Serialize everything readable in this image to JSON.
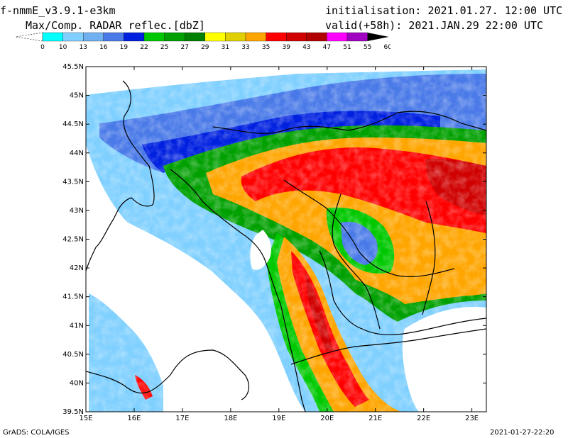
{
  "header": {
    "model": "f-nmmE_v3.9.1-e3km",
    "field": "Max/Comp. RADAR reflec.[dbZ]",
    "init": "initialisation: 2021.01.27. 12:00 UTC",
    "valid": "valid(+58h): 2021.JAN.29 22:00 UTC"
  },
  "colorbar": {
    "labels": [
      "0",
      "10",
      "13",
      "16",
      "19",
      "22",
      "25",
      "27",
      "29",
      "31",
      "33",
      "35",
      "39",
      "43",
      "47",
      "51",
      "55",
      "60"
    ],
    "colors": [
      "#ffffff",
      "#00ffff",
      "#80d0ff",
      "#70b0f0",
      "#4a7ae8",
      "#0020e0",
      "#00c800",
      "#00a000",
      "#008000",
      "#ffff00",
      "#e0d000",
      "#ffa500",
      "#ff0000",
      "#d00000",
      "#b00000",
      "#ff00ff",
      "#a000c0",
      "#000000"
    ]
  },
  "map": {
    "lon_labels": [
      "15E",
      "16E",
      "17E",
      "18E",
      "19E",
      "20E",
      "21E",
      "22E",
      "23E"
    ],
    "lat_labels": [
      "45.5N",
      "45N",
      "44.5N",
      "44N",
      "43.5N",
      "43N",
      "42.5N",
      "42N",
      "41.5N",
      "41N",
      "40.5N",
      "40N",
      "39.5N"
    ],
    "lon_range": [
      15,
      23.3
    ],
    "lat_range": [
      39.5,
      45.5
    ]
  },
  "footer": {
    "left": "GrADS: COLA/IGES",
    "right": "2021-01-27-22:20"
  }
}
